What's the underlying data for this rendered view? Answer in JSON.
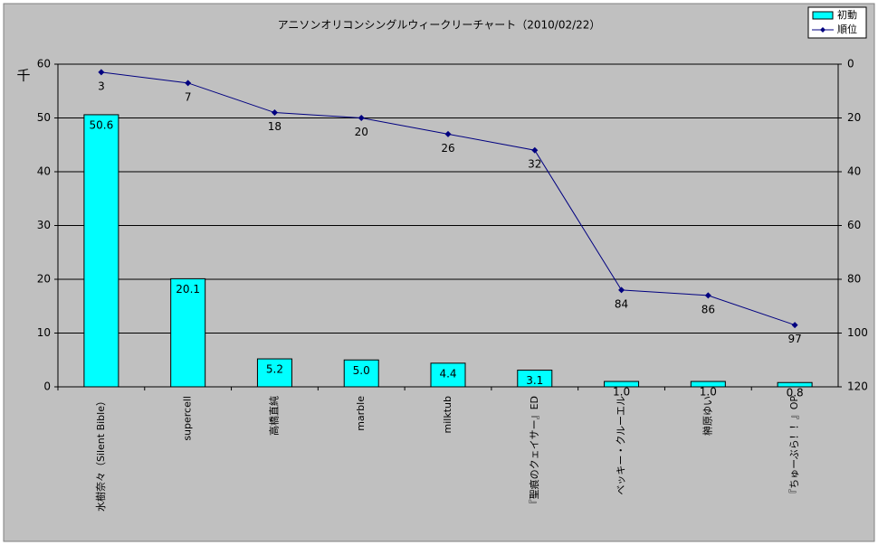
{
  "chart_data": {
    "type": "bar-line",
    "title": "アニソンオリコンシングルウィークリーチャート（2010/02/22）",
    "y_label": "千",
    "categories": [
      "水樹奈々（Silent Bible）",
      "supercell",
      "高橋直純",
      "marble",
      "milktub",
      "『聖痕のクェイサー』ED",
      "ベッキー・クルーエル",
      "榊原ゆい",
      "『ちゅーぶら！！』OP"
    ],
    "series": [
      {
        "name": "初動",
        "type": "bar",
        "color": "#00ffff",
        "values": [
          50.6,
          20.1,
          5.2,
          5.0,
          4.4,
          3.1,
          1.0,
          1.0,
          0.8
        ],
        "value_labels": [
          "50.6",
          "20.1",
          "5.2",
          "5.0",
          "4.4",
          "3.1",
          "1.0",
          "1.0",
          "0.8"
        ]
      },
      {
        "name": "順位",
        "type": "line",
        "axis": "y2",
        "color": "#000080",
        "values": [
          3,
          7,
          18,
          20,
          26,
          32,
          84,
          86,
          97
        ]
      }
    ],
    "ylim": [
      0,
      60
    ],
    "yticks": [
      0,
      10,
      20,
      30,
      40,
      50,
      60
    ],
    "y2lim": [
      0,
      120
    ],
    "y2ticks": [
      0,
      20,
      40,
      60,
      80,
      100,
      120
    ],
    "y2_inverted": true,
    "grid": true,
    "legend": "top-right"
  }
}
